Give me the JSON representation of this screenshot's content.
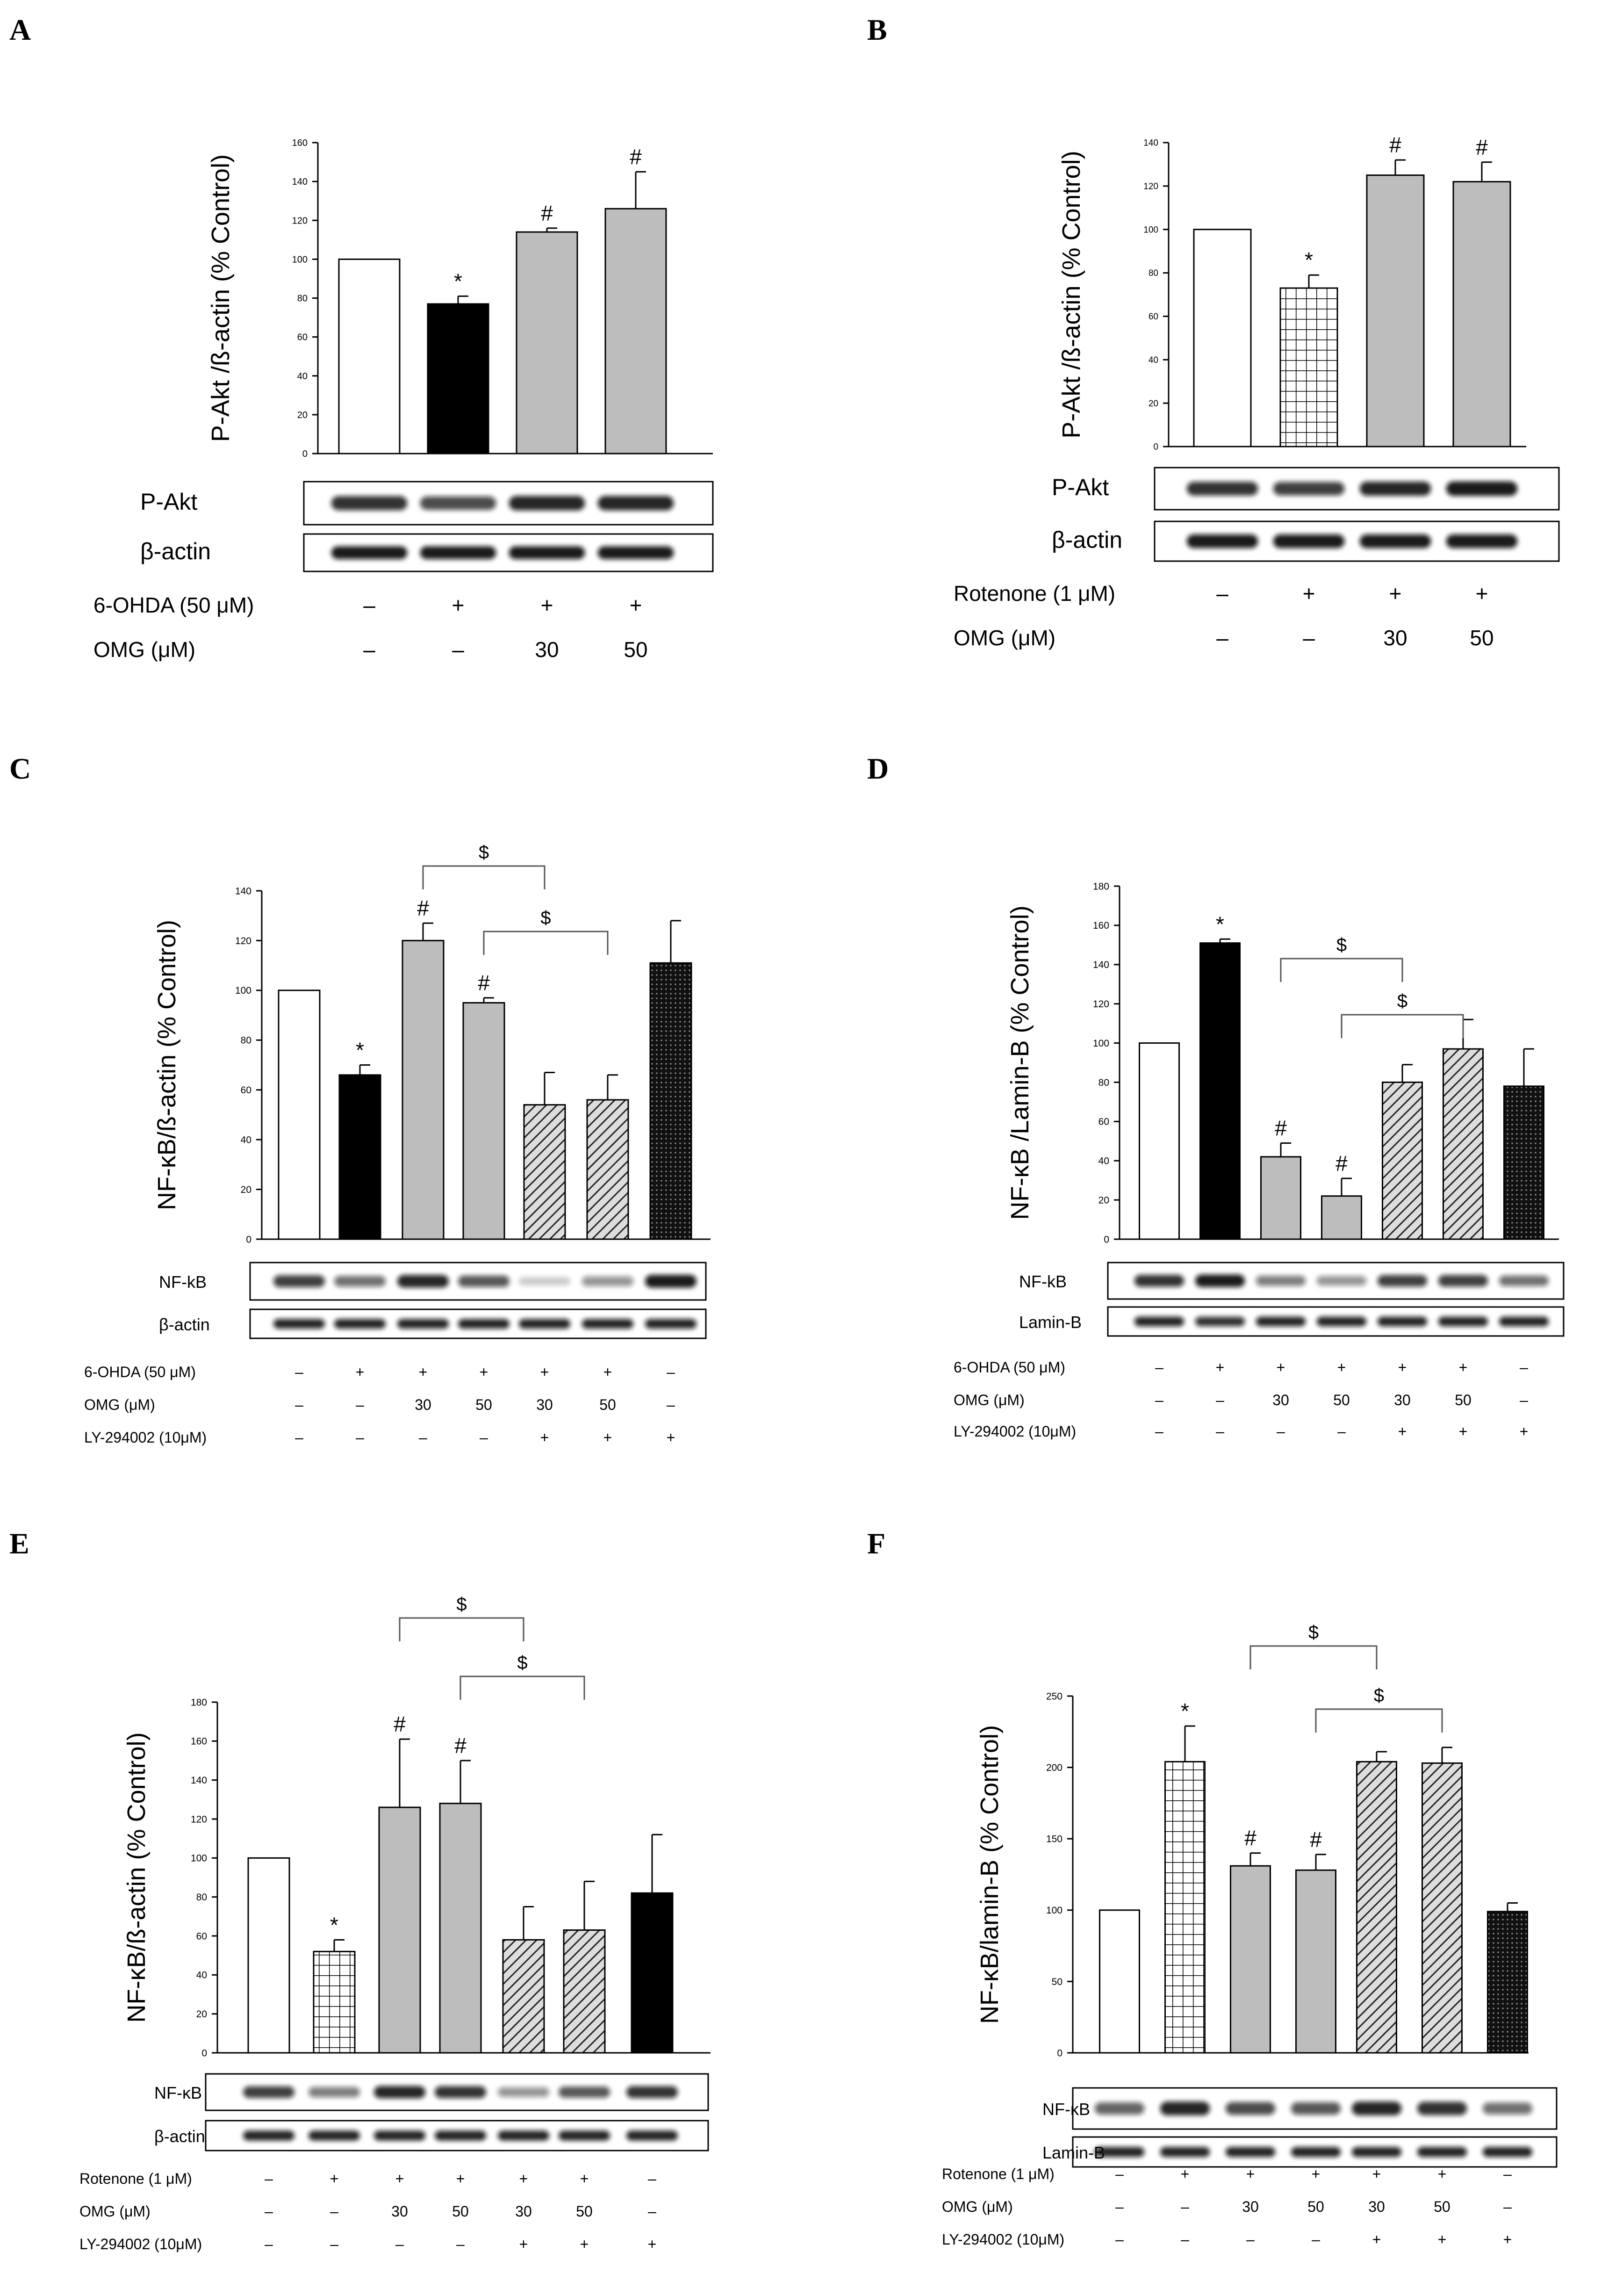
{
  "colors": {
    "control": "#ffffff",
    "treatment": "#000000",
    "omg": "#bdbdbd",
    "band": "#111111"
  },
  "chart_data": [
    {
      "panel": "A",
      "type": "bar",
      "ylabel": "P-Akt /ß-actin (% Control)",
      "ylim": [
        0,
        160
      ],
      "yticks": [
        "0",
        "20",
        "40",
        "60",
        "80",
        "100",
        "120",
        "140",
        "160"
      ],
      "values": [
        100,
        77,
        114,
        126
      ],
      "errors": [
        0,
        4,
        2,
        19
      ],
      "fills": [
        "white",
        "black",
        "gray",
        "gray"
      ],
      "annotations": [
        "",
        "*",
        "#",
        "#"
      ],
      "blots": [
        {
          "label": "P-Akt",
          "intensity": [
            0.85,
            0.75,
            0.9,
            0.9
          ]
        },
        {
          "label": "β-actin",
          "intensity": [
            0.95,
            0.95,
            0.95,
            0.95
          ]
        }
      ],
      "conditions": [
        {
          "label": "6-OHDA (50 μM)",
          "values": [
            "–",
            "+",
            "+",
            "+"
          ]
        },
        {
          "label": "OMG (μM)",
          "values": [
            "–",
            "–",
            "30",
            "50"
          ]
        }
      ],
      "brackets": []
    },
    {
      "panel": "B",
      "type": "bar",
      "ylabel": "P-Akt /ß-actin (% Control)",
      "ylim": [
        0,
        140
      ],
      "yticks": [
        "0",
        "20",
        "40",
        "60",
        "80",
        "100",
        "120",
        "140"
      ],
      "values": [
        100,
        73,
        125,
        122
      ],
      "errors": [
        0,
        6,
        7,
        9
      ],
      "fills": [
        "white",
        "grid",
        "gray",
        "gray"
      ],
      "annotations": [
        "",
        "*",
        "#",
        "#"
      ],
      "blots": [
        {
          "label": "P-Akt",
          "intensity": [
            0.85,
            0.8,
            0.9,
            0.95
          ]
        },
        {
          "label": "β-actin",
          "intensity": [
            0.95,
            0.95,
            0.95,
            0.95
          ]
        }
      ],
      "conditions": [
        {
          "label": "Rotenone (1 μM)",
          "values": [
            "–",
            "+",
            "+",
            "+"
          ]
        },
        {
          "label": "OMG (μM)",
          "values": [
            "–",
            "–",
            "30",
            "50"
          ]
        }
      ],
      "brackets": []
    },
    {
      "panel": "C",
      "type": "bar",
      "ylabel": "NF-κB/ß-actin (% Control)",
      "ylim": [
        0,
        140
      ],
      "yticks": [
        "0",
        "20",
        "40",
        "60",
        "80",
        "100",
        "120",
        "140"
      ],
      "values": [
        100,
        66,
        120,
        95,
        54,
        56,
        111
      ],
      "errors": [
        0,
        4,
        7,
        2,
        13,
        10,
        17
      ],
      "fills": [
        "white",
        "black",
        "gray",
        "gray",
        "hatch",
        "hatch",
        "dots"
      ],
      "annotations": [
        "",
        "*",
        "#",
        "#",
        "",
        "",
        ""
      ],
      "blots": [
        {
          "label": "NF-kB",
          "intensity": [
            0.8,
            0.6,
            0.9,
            0.7,
            0.2,
            0.45,
            0.95
          ]
        },
        {
          "label": "β-actin",
          "intensity": [
            0.9,
            0.9,
            0.9,
            0.9,
            0.9,
            0.9,
            0.9
          ]
        }
      ],
      "conditions": [
        {
          "label": "6-OHDA (50 μM)",
          "values": [
            "–",
            "+",
            "+",
            "+",
            "+",
            "+",
            "–"
          ]
        },
        {
          "label": "OMG (μM)",
          "values": [
            "–",
            "–",
            "30",
            "50",
            "30",
            "50",
            "–"
          ]
        },
        {
          "label": "LY-294002 (10μM)",
          "values": [
            "–",
            "–",
            "–",
            "–",
            "+",
            "+",
            "+"
          ]
        }
      ],
      "brackets": [
        {
          "from": 2,
          "to": 4,
          "label": "$"
        },
        {
          "from": 3,
          "to": 5,
          "label": "$"
        }
      ]
    },
    {
      "panel": "D",
      "type": "bar",
      "ylabel": "NF-κB /Lamin-B (% Control)",
      "ylim": [
        0,
        180
      ],
      "yticks": [
        "0",
        "20",
        "40",
        "60",
        "80",
        "100",
        "120",
        "140",
        "160",
        "180"
      ],
      "values": [
        100,
        151,
        42,
        22,
        80,
        97,
        78
      ],
      "errors": [
        0,
        2,
        7,
        9,
        9,
        15,
        19
      ],
      "fills": [
        "white",
        "black",
        "gray",
        "gray",
        "hatch",
        "hatch",
        "dots"
      ],
      "annotations": [
        "",
        "*",
        "#",
        "#",
        "",
        "",
        ""
      ],
      "blots": [
        {
          "label": "NF-kB",
          "intensity": [
            0.85,
            0.95,
            0.55,
            0.45,
            0.8,
            0.8,
            0.6
          ]
        },
        {
          "label": "Lamin-B",
          "intensity": [
            0.9,
            0.85,
            0.9,
            0.9,
            0.9,
            0.9,
            0.9
          ]
        }
      ],
      "conditions": [
        {
          "label": "6-OHDA (50 μM)",
          "values": [
            "–",
            "+",
            "+",
            "+",
            "+",
            "+",
            "–"
          ]
        },
        {
          "label": "OMG (μM)",
          "values": [
            "–",
            "–",
            "30",
            "50",
            "30",
            "50",
            "–"
          ]
        },
        {
          "label": "LY-294002 (10μM)",
          "values": [
            "–",
            "–",
            "–",
            "–",
            "+",
            "+",
            "+"
          ]
        }
      ],
      "brackets": [
        {
          "from": 2,
          "to": 4,
          "label": "$"
        },
        {
          "from": 3,
          "to": 5,
          "label": "$"
        }
      ]
    },
    {
      "panel": "E",
      "type": "bar",
      "ylabel": "NF-κB/ß-actin (% Control)",
      "ylim": [
        0,
        180
      ],
      "yticks": [
        "0",
        "20",
        "40",
        "60",
        "80",
        "100",
        "120",
        "140",
        "160",
        "180"
      ],
      "values": [
        100,
        52,
        126,
        128,
        58,
        63,
        82
      ],
      "errors": [
        0,
        6,
        35,
        22,
        17,
        25,
        30
      ],
      "fills": [
        "white",
        "grid",
        "gray",
        "gray",
        "hatch",
        "hatch",
        "black"
      ],
      "annotations": [
        "",
        "*",
        "#",
        "#",
        "",
        "",
        ""
      ],
      "blots": [
        {
          "label": "NF-κB",
          "intensity": [
            0.8,
            0.55,
            0.9,
            0.85,
            0.45,
            0.7,
            0.85
          ]
        },
        {
          "label": "β-actin",
          "intensity": [
            0.9,
            0.9,
            0.9,
            0.9,
            0.9,
            0.9,
            0.9
          ]
        }
      ],
      "conditions": [
        {
          "label": "Rotenone (1 μM)",
          "values": [
            "–",
            "+",
            "+",
            "+",
            "+",
            "+",
            "–"
          ]
        },
        {
          "label": "OMG (μM)",
          "values": [
            "–",
            "–",
            "30",
            "50",
            "30",
            "50",
            "–"
          ]
        },
        {
          "label": "LY-294002 (10μM)",
          "values": [
            "–",
            "–",
            "–",
            "–",
            "+",
            "+",
            "+"
          ]
        }
      ],
      "brackets": [
        {
          "from": 2,
          "to": 4,
          "label": "$"
        },
        {
          "from": 3,
          "to": 5,
          "label": "$"
        }
      ]
    },
    {
      "panel": "F",
      "type": "bar",
      "ylabel": "NF-κB/lamin-B (% Control)",
      "ylim": [
        0,
        250
      ],
      "yticks": [
        "0",
        "50",
        "100",
        "150",
        "200",
        "250"
      ],
      "values": [
        100,
        204,
        131,
        128,
        204,
        203,
        99
      ],
      "errors": [
        0,
        25,
        9,
        11,
        7,
        11,
        6
      ],
      "fills": [
        "white",
        "grid",
        "gray",
        "gray",
        "hatch",
        "hatch",
        "dots"
      ],
      "annotations": [
        "",
        "*",
        "#",
        "#",
        "",
        "",
        ""
      ],
      "blots": [
        {
          "label": "NF-κB",
          "intensity": [
            0.65,
            0.9,
            0.75,
            0.7,
            0.9,
            0.85,
            0.6
          ]
        },
        {
          "label": "Lamin-B",
          "intensity": [
            0.9,
            0.9,
            0.9,
            0.9,
            0.9,
            0.9,
            0.9
          ]
        }
      ],
      "conditions": [
        {
          "label": "Rotenone (1 μM)",
          "values": [
            "–",
            "+",
            "+",
            "+",
            "+",
            "+",
            "–"
          ]
        },
        {
          "label": "OMG (μM)",
          "values": [
            "–",
            "–",
            "30",
            "50",
            "30",
            "50",
            "–"
          ]
        },
        {
          "label": "LY-294002 (10μM)",
          "values": [
            "–",
            "–",
            "–",
            "–",
            "+",
            "+",
            "+"
          ]
        }
      ],
      "brackets": [
        {
          "from": 2,
          "to": 4,
          "label": "$"
        },
        {
          "from": 3,
          "to": 5,
          "label": "$"
        }
      ]
    }
  ]
}
